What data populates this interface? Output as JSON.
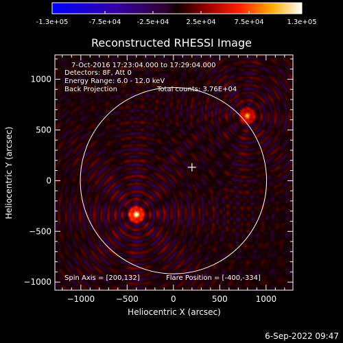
{
  "chart_data": {
    "type": "heatmap",
    "title": "Reconstructed RHESSI Image",
    "xlabel": "Heliocentric X (arcsec)",
    "ylabel": "Heliocentric Y (arcsec)",
    "xlim": [
      -1280,
      1290
    ],
    "ylim": [
      -1080,
      1240
    ],
    "xticks": [
      -1000,
      -500,
      0,
      500,
      1000
    ],
    "yticks": [
      -1000,
      -500,
      0,
      500,
      1000
    ],
    "xtick_labels": [
      "−1000",
      "−500",
      "0",
      "500",
      "1000"
    ],
    "ytick_labels": [
      "−1000",
      "−500",
      "0",
      "500",
      "1000"
    ],
    "colorbar": {
      "range": [
        -130000,
        130000
      ],
      "tick_values": [
        -130000,
        -75000,
        -25000,
        25000,
        75000,
        130000
      ],
      "tick_labels": [
        "-1.3e+05",
        "-7.5e+04",
        "-2.5e+04",
        "2.5e+04",
        "7.5e+04",
        "1.3e+05"
      ]
    },
    "annotations": {
      "time_range": "7-Oct-2016 17:23:04.000 to 17:29:04.000",
      "detectors": "Detectors: 8F, Att 0",
      "energy": "Energy Range: 6.0 - 12.0 keV",
      "method": "Back Projection",
      "counts": "Total counts: 3.76E+04",
      "spin_axis": "Spin Axis = [200,132]",
      "flare_position": "Flare Position = [-400,-334]"
    },
    "sources": [
      {
        "x": -400,
        "y": -334,
        "peak": 130000
      },
      {
        "x": 800,
        "y": 640,
        "peak": 95000
      }
    ],
    "spin_axis_point": [
      200,
      132
    ],
    "solar_limb_radius": 960,
    "grid": false,
    "colormap": "blue-purple-red-yellow-white"
  },
  "footer": {
    "timestamp": "6-Sep-2022 09:47"
  }
}
